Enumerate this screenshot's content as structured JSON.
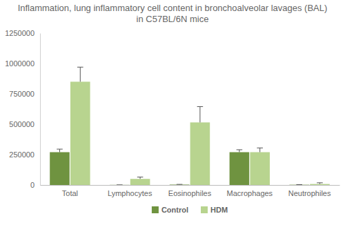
{
  "chart_data": {
    "type": "bar",
    "title": "Inflammation, lung inflammatory cell content in bronchoalveolar lavages (BAL) in C57BL/6N mice",
    "categories": [
      "Total",
      "Lymphocytes",
      "Eosinophiles",
      "Macrophages",
      "Neutrophiles"
    ],
    "series": [
      {
        "name": "Control",
        "color": "#6f9340",
        "values": [
          270000,
          1000,
          3000,
          270000,
          2000
        ],
        "errors": [
          25000,
          0,
          2000,
          20000,
          1000
        ]
      },
      {
        "name": "HDM",
        "color": "#b8d48f",
        "values": [
          850000,
          50000,
          515000,
          270000,
          8000
        ],
        "errors": [
          120000,
          15000,
          130000,
          35000,
          10000
        ]
      }
    ],
    "ylim": [
      0,
      1250000
    ],
    "yticks": [
      0,
      250000,
      500000,
      750000,
      1000000,
      1250000
    ],
    "grid": false,
    "legend": "bottom"
  }
}
